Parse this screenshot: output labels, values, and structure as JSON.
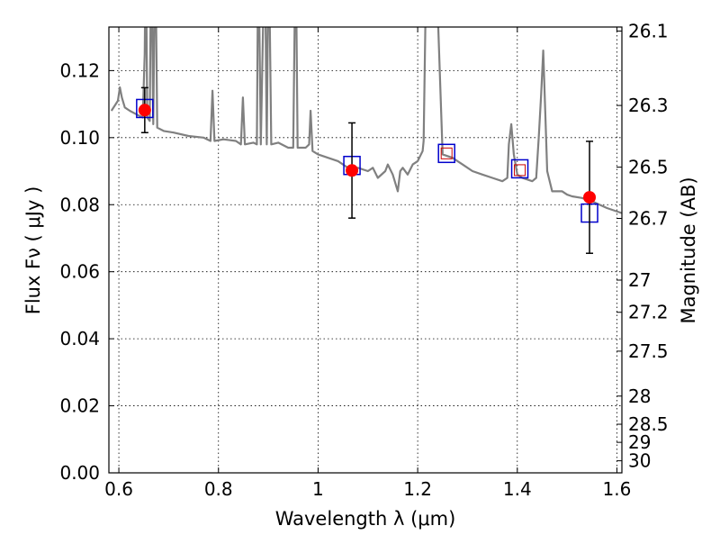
{
  "chart_data": {
    "type": "line",
    "xlabel": "Wavelength  λ (μm)",
    "ylabel": "Flux  Fν  ( μJy )",
    "y2label": "Magnitude (AB)",
    "xlim": [
      0.58,
      1.61
    ],
    "ylim": [
      0.0,
      0.133
    ],
    "grid": true,
    "x_ticks": [
      0.6,
      0.8,
      1.0,
      1.2,
      1.4,
      1.6
    ],
    "x_tick_labels": [
      "0.6",
      "0.8",
      "1",
      "1.2",
      "1.4",
      "1.6"
    ],
    "y_ticks": [
      0.0,
      0.02,
      0.04,
      0.06,
      0.08,
      0.1,
      0.12
    ],
    "y_tick_labels": [
      "0.00",
      "0.02",
      "0.04",
      "0.06",
      "0.08",
      "0.10",
      "0.12"
    ],
    "y2_ticks": [
      {
        "label": "26.1",
        "flux": 0.1318
      },
      {
        "label": "26.3",
        "flux": 0.1096
      },
      {
        "label": "26.5",
        "flux": 0.0912
      },
      {
        "label": "26.7",
        "flux": 0.0759
      },
      {
        "label": "27",
        "flux": 0.0575
      },
      {
        "label": "27.2",
        "flux": 0.0479
      },
      {
        "label": "27.5",
        "flux": 0.0363
      },
      {
        "label": "28",
        "flux": 0.0229
      },
      {
        "label": "28.5",
        "flux": 0.0145
      },
      {
        "label": "29",
        "flux": 0.0091
      },
      {
        "label": "30",
        "flux": 0.0036
      }
    ],
    "sed_model": {
      "color": "#808080",
      "points": [
        [
          0.585,
          0.108
        ],
        [
          0.598,
          0.111
        ],
        [
          0.602,
          0.115
        ],
        [
          0.606,
          0.112
        ],
        [
          0.612,
          0.109
        ],
        [
          0.622,
          0.108
        ],
        [
          0.635,
          0.107
        ],
        [
          0.648,
          0.106
        ],
        [
          0.652,
          0.125
        ],
        [
          0.654,
          0.16
        ],
        [
          0.657,
          0.106
        ],
        [
          0.662,
          0.105
        ],
        [
          0.665,
          0.16
        ],
        [
          0.669,
          0.104
        ],
        [
          0.673,
          0.16
        ],
        [
          0.677,
          0.103
        ],
        [
          0.69,
          0.102
        ],
        [
          0.71,
          0.1015
        ],
        [
          0.74,
          0.1005
        ],
        [
          0.77,
          0.1
        ],
        [
          0.784,
          0.099
        ],
        [
          0.788,
          0.114
        ],
        [
          0.792,
          0.099
        ],
        [
          0.81,
          0.0995
        ],
        [
          0.835,
          0.099
        ],
        [
          0.845,
          0.098
        ],
        [
          0.849,
          0.112
        ],
        [
          0.853,
          0.098
        ],
        [
          0.87,
          0.0985
        ],
        [
          0.877,
          0.098
        ],
        [
          0.88,
          0.16
        ],
        [
          0.885,
          0.098
        ],
        [
          0.893,
          0.16
        ],
        [
          0.897,
          0.098
        ],
        [
          0.901,
          0.16
        ],
        [
          0.906,
          0.098
        ],
        [
          0.92,
          0.0985
        ],
        [
          0.94,
          0.097
        ],
        [
          0.95,
          0.097
        ],
        [
          0.955,
          0.16
        ],
        [
          0.959,
          0.097
        ],
        [
          0.975,
          0.097
        ],
        [
          0.982,
          0.098
        ],
        [
          0.985,
          0.108
        ],
        [
          0.989,
          0.096
        ],
        [
          1.0,
          0.095
        ],
        [
          1.02,
          0.094
        ],
        [
          1.04,
          0.093
        ],
        [
          1.06,
          0.091
        ],
        [
          1.08,
          0.091
        ],
        [
          1.1,
          0.09
        ],
        [
          1.11,
          0.091
        ],
        [
          1.12,
          0.088
        ],
        [
          1.135,
          0.09
        ],
        [
          1.14,
          0.092
        ],
        [
          1.15,
          0.089
        ],
        [
          1.16,
          0.084
        ],
        [
          1.165,
          0.09
        ],
        [
          1.17,
          0.091
        ],
        [
          1.18,
          0.089
        ],
        [
          1.19,
          0.092
        ],
        [
          1.2,
          0.093
        ],
        [
          1.21,
          0.096
        ],
        [
          1.212,
          0.099
        ],
        [
          1.218,
          0.16
        ],
        [
          1.235,
          0.16
        ],
        [
          1.25,
          0.095
        ],
        [
          1.27,
          0.094
        ],
        [
          1.29,
          0.092
        ],
        [
          1.31,
          0.09
        ],
        [
          1.33,
          0.089
        ],
        [
          1.35,
          0.088
        ],
        [
          1.37,
          0.087
        ],
        [
          1.38,
          0.088
        ],
        [
          1.383,
          0.098
        ],
        [
          1.388,
          0.104
        ],
        [
          1.393,
          0.095
        ],
        [
          1.4,
          0.089
        ],
        [
          1.41,
          0.088
        ],
        [
          1.42,
          0.0875
        ],
        [
          1.43,
          0.087
        ],
        [
          1.438,
          0.088
        ],
        [
          1.443,
          0.1
        ],
        [
          1.448,
          0.113
        ],
        [
          1.452,
          0.126
        ],
        [
          1.456,
          0.108
        ],
        [
          1.46,
          0.09
        ],
        [
          1.47,
          0.084
        ],
        [
          1.49,
          0.084
        ],
        [
          1.5,
          0.083
        ],
        [
          1.51,
          0.0825
        ],
        [
          1.53,
          0.082
        ],
        [
          1.55,
          0.081
        ],
        [
          1.58,
          0.079
        ],
        [
          1.61,
          0.0775
        ]
      ]
    },
    "observed": {
      "color": "#ff0000",
      "points": [
        {
          "x": 0.652,
          "y": 0.1082,
          "err": 0.0067
        },
        {
          "x": 1.068,
          "y": 0.0902,
          "err": 0.0142
        },
        {
          "x": 1.545,
          "y": 0.0822,
          "err": 0.0167
        }
      ]
    },
    "model_bands_blue": {
      "color": "#0000cc",
      "points": [
        {
          "x": 0.652,
          "y": 0.1087
        },
        {
          "x": 1.068,
          "y": 0.0917
        },
        {
          "x": 1.258,
          "y": 0.0953
        },
        {
          "x": 1.405,
          "y": 0.0907
        },
        {
          "x": 1.545,
          "y": 0.0775
        }
      ]
    },
    "model_bands_red": {
      "color": "#cc0000",
      "points": [
        {
          "x": 1.258,
          "y": 0.0953
        },
        {
          "x": 1.405,
          "y": 0.0903
        }
      ]
    }
  }
}
